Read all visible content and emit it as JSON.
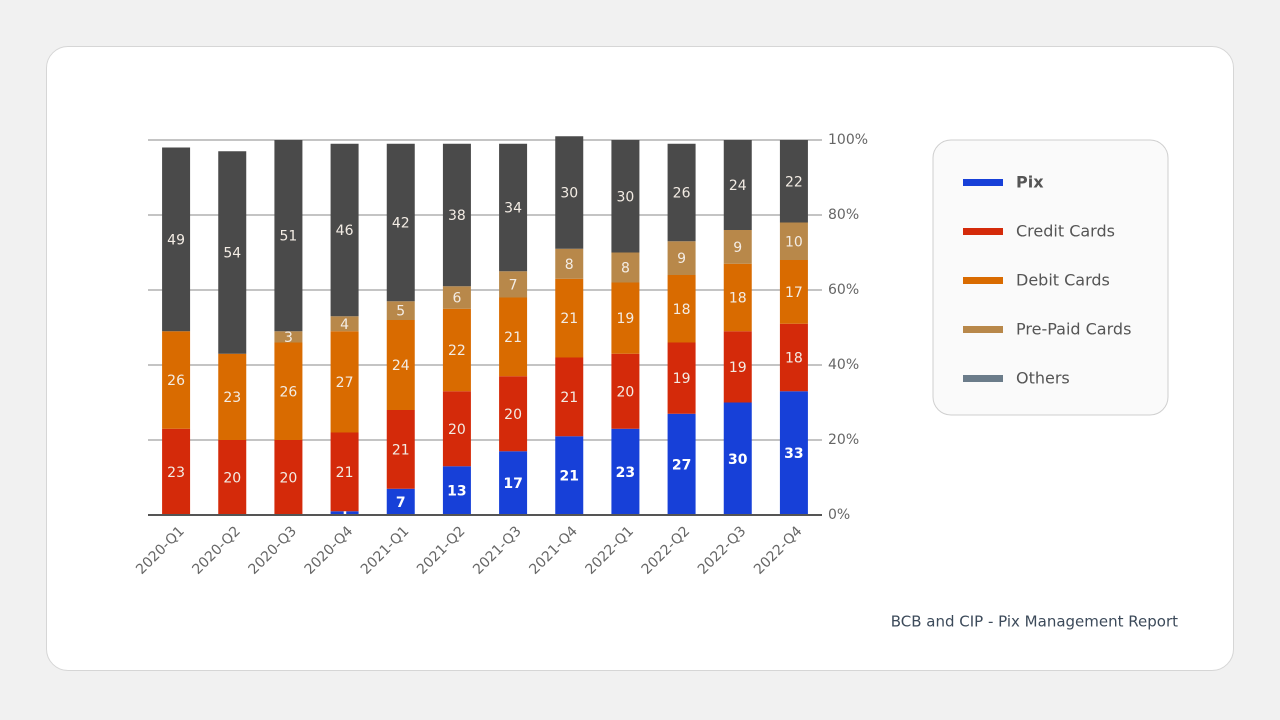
{
  "chart_data": {
    "type": "stacked_bar",
    "source": "BCB and CIP - Pix Management Report",
    "categories": [
      "2020-Q1",
      "2020-Q2",
      "2020-Q3",
      "2020-Q4",
      "2021-Q1",
      "2021-Q2",
      "2021-Q3",
      "2021-Q4",
      "2022-Q1",
      "2022-Q2",
      "2022-Q3",
      "2022-Q4"
    ],
    "series": [
      {
        "name": "Pix",
        "color": "#1740d8",
        "values": [
          0,
          0,
          0,
          1,
          7,
          13,
          17,
          21,
          23,
          27,
          30,
          33
        ]
      },
      {
        "name": "Credit Cards",
        "color": "#d42a0a",
        "values": [
          23,
          20,
          20,
          21,
          21,
          20,
          20,
          21,
          20,
          19,
          19,
          18
        ]
      },
      {
        "name": "Debit Cards",
        "color": "#d96b00",
        "values": [
          26,
          23,
          26,
          27,
          24,
          22,
          21,
          21,
          19,
          18,
          18,
          17
        ]
      },
      {
        "name": "Pre-Paid Cards",
        "color": "#b8884a",
        "values": [
          0,
          0,
          3,
          4,
          5,
          6,
          7,
          8,
          8,
          9,
          9,
          10
        ]
      },
      {
        "name": "Others",
        "color": "#4a4a4a",
        "values": [
          49,
          54,
          51,
          46,
          42,
          38,
          34,
          30,
          30,
          26,
          24,
          22
        ]
      }
    ],
    "ylim": [
      0,
      100
    ],
    "yticks": [
      {
        "value": 0,
        "label": "0%"
      },
      {
        "value": 20,
        "label": "20%"
      },
      {
        "value": 40,
        "label": "40%"
      },
      {
        "value": 60,
        "label": "60%"
      },
      {
        "value": 80,
        "label": "80%"
      },
      {
        "value": 100,
        "label": "100%"
      }
    ],
    "grid": true,
    "legend": "right"
  }
}
